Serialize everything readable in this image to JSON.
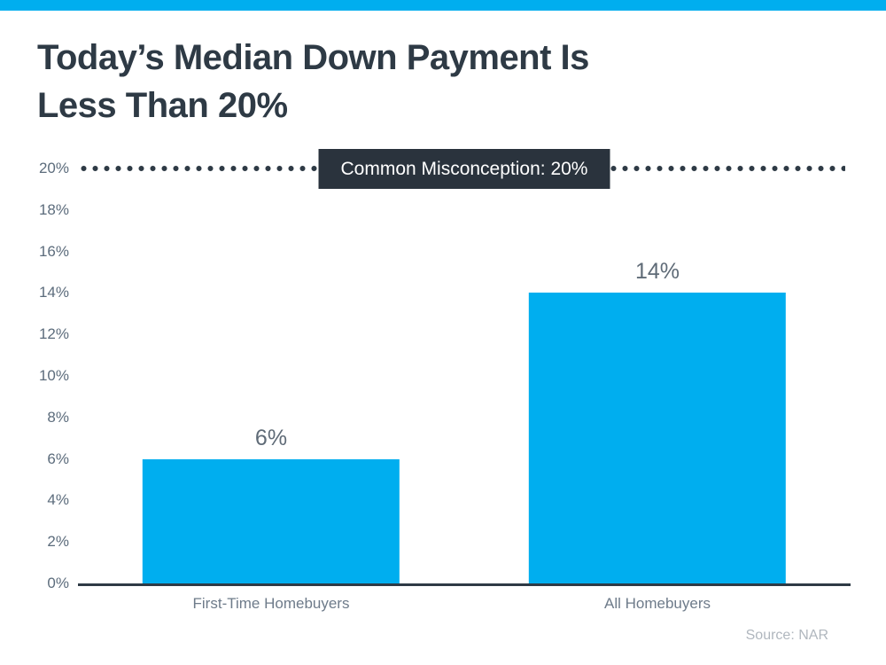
{
  "page": {
    "title": "Today’s Median Down Payment Is\nLess Than 20%",
    "source": "Source: NAR"
  },
  "annotation": {
    "label": "Common Misconception: 20%"
  },
  "colors": {
    "accent": "#00AEEF",
    "dark": "#2E3A45",
    "badge_bg": "#2A333D",
    "tick_text": "#5C6C7C",
    "value_text": "#5F6B77",
    "category_text": "#6E7B8A",
    "source_text": "#B0B7BE"
  },
  "chart_data": {
    "type": "bar",
    "title": "Today’s Median Down Payment Is Less Than 20%",
    "categories": [
      "First-Time Homebuyers",
      "All Homebuyers"
    ],
    "values": [
      6,
      14
    ],
    "value_labels": [
      "6%",
      "14%"
    ],
    "xlabel": "",
    "ylabel": "",
    "ylim": [
      0,
      20
    ],
    "ytick_step": 2,
    "yticks": [
      "0%",
      "2%",
      "4%",
      "6%",
      "8%",
      "10%",
      "12%",
      "14%",
      "16%",
      "18%",
      "20%"
    ],
    "grid": false,
    "legend": false,
    "bar_color": "#00AEEF",
    "annotation": {
      "text": "Common Misconception: 20%",
      "y": 20,
      "style": "dotted-line-with-badge"
    },
    "source": "Source: NAR"
  }
}
